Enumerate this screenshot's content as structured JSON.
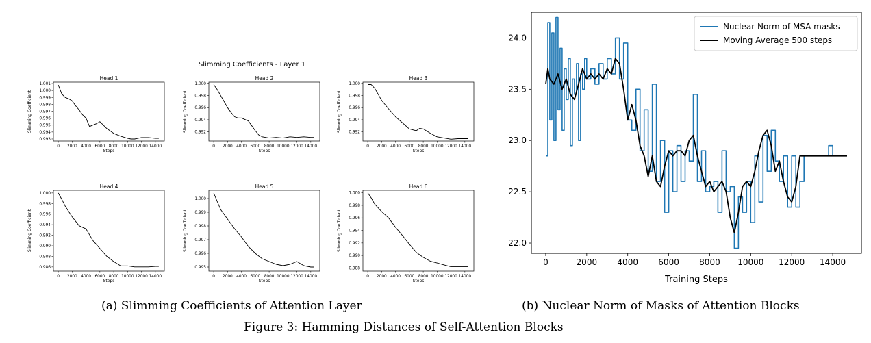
{
  "figure": {
    "caption": "Figure 3: Hamming Distances of Self-Attention Blocks",
    "sub_a": "(a) Slimming Coefficients of Attention Layer",
    "sub_b": "(b) Nuclear Norm of Masks of Attention Blocks"
  },
  "chart_data": [
    {
      "type": "line",
      "title": "Slimming Coefficients - Layer 1",
      "subplots": [
        {
          "title": "Head 1",
          "xlabel": "Steps",
          "ylabel": "Slimming Coefficient",
          "yticks": [
            0.993,
            0.994,
            0.995,
            0.996,
            0.997,
            0.998,
            0.999,
            1.0,
            1.001
          ],
          "ylim": [
            0.9927,
            1.0012
          ],
          "x": [
            0,
            500,
            1000,
            1500,
            2000,
            2500,
            3000,
            3500,
            4000,
            4500,
            5000,
            5500,
            6000,
            6500,
            7000,
            8000,
            9000,
            10000,
            10500,
            11000,
            12000,
            13000,
            14000,
            14500
          ],
          "y": [
            1.0008,
            0.9995,
            0.999,
            0.9988,
            0.9985,
            0.9978,
            0.9972,
            0.9965,
            0.996,
            0.9948,
            0.995,
            0.9952,
            0.9955,
            0.995,
            0.9945,
            0.9938,
            0.9934,
            0.9931,
            0.993,
            0.993,
            0.9932,
            0.9932,
            0.9931,
            0.9931
          ]
        },
        {
          "title": "Head 2",
          "xlabel": "Steps",
          "ylabel": "Slimming Coefficient",
          "yticks": [
            0.992,
            0.994,
            0.996,
            0.998,
            1.0
          ],
          "ylim": [
            0.9905,
            1.0002
          ],
          "x": [
            0,
            500,
            1000,
            1500,
            2000,
            2500,
            3000,
            3500,
            4000,
            5000,
            5500,
            6000,
            6500,
            7000,
            8000,
            9000,
            10000,
            11000,
            12000,
            13000,
            14000,
            14500
          ],
          "y": [
            0.9998,
            0.999,
            0.998,
            0.997,
            0.996,
            0.9952,
            0.9945,
            0.9943,
            0.9943,
            0.9938,
            0.993,
            0.9922,
            0.9915,
            0.9912,
            0.991,
            0.9911,
            0.991,
            0.9912,
            0.9911,
            0.9912,
            0.9911,
            0.9911
          ]
        },
        {
          "title": "Head 3",
          "xlabel": "Steps",
          "ylabel": "Slimming Coefficient",
          "yticks": [
            0.992,
            0.994,
            0.996,
            0.998,
            1.0
          ],
          "ylim": [
            0.9905,
            1.0002
          ],
          "x": [
            0,
            500,
            1000,
            1500,
            2000,
            3000,
            4000,
            5000,
            6000,
            7000,
            7500,
            8000,
            9000,
            10000,
            11000,
            12000,
            13000,
            14000,
            14500
          ],
          "y": [
            0.9998,
            0.9998,
            0.9992,
            0.9982,
            0.9972,
            0.9958,
            0.9945,
            0.9935,
            0.9925,
            0.9922,
            0.9926,
            0.9925,
            0.9918,
            0.9912,
            0.991,
            0.9908,
            0.9909,
            0.9909,
            0.9909
          ]
        },
        {
          "title": "Head 4",
          "xlabel": "Steps",
          "ylabel": "Slimming Coefficient",
          "yticks": [
            0.986,
            0.988,
            0.99,
            0.992,
            0.994,
            0.996,
            0.998,
            1.0
          ],
          "ylim": [
            0.9852,
            1.0005
          ],
          "x": [
            0,
            500,
            1000,
            2000,
            3000,
            4000,
            5000,
            6000,
            7000,
            8000,
            9000,
            10000,
            11000,
            12000,
            13000,
            14000,
            14500
          ],
          "y": [
            1.0,
            0.9988,
            0.9975,
            0.9955,
            0.9938,
            0.9932,
            0.991,
            0.9895,
            0.988,
            0.987,
            0.9862,
            0.9862,
            0.986,
            0.986,
            0.986,
            0.9861,
            0.9861
          ]
        },
        {
          "title": "Head 5",
          "xlabel": "Steps",
          "ylabel": "Slimming Coefficient",
          "yticks": [
            0.995,
            0.996,
            0.997,
            0.998,
            0.999,
            1.0
          ],
          "ylim": [
            0.9947,
            1.0006
          ],
          "x": [
            0,
            500,
            1000,
            2000,
            3000,
            4000,
            5000,
            6000,
            7000,
            8000,
            9000,
            10000,
            11000,
            12000,
            13000,
            14000,
            14500
          ],
          "y": [
            1.0004,
            0.9998,
            0.9992,
            0.9985,
            0.9978,
            0.9972,
            0.9965,
            0.996,
            0.9956,
            0.9954,
            0.9952,
            0.9951,
            0.9952,
            0.9954,
            0.9951,
            0.995,
            0.995
          ]
        },
        {
          "title": "Head 6",
          "xlabel": "Steps",
          "ylabel": "Slimming Coefficient",
          "yticks": [
            0.988,
            0.99,
            0.992,
            0.994,
            0.996,
            0.998,
            1.0
          ],
          "ylim": [
            0.9875,
            1.0004
          ],
          "x": [
            0,
            500,
            1000,
            2000,
            3000,
            4000,
            5000,
            6000,
            7000,
            8000,
            9000,
            10000,
            11000,
            12000,
            13000,
            14000,
            14500
          ],
          "y": [
            1.0,
            0.9992,
            0.9982,
            0.997,
            0.996,
            0.9945,
            0.9932,
            0.9918,
            0.9905,
            0.9897,
            0.9891,
            0.9888,
            0.9885,
            0.9882,
            0.9882,
            0.9882,
            0.9882
          ]
        }
      ],
      "xticks": [
        0,
        2000,
        4000,
        6000,
        8000,
        10000,
        12000,
        14000
      ],
      "xlim": [
        -700,
        15300
      ]
    },
    {
      "type": "line",
      "xlabel": "Training Steps",
      "ylabel": "",
      "xlim": [
        -700,
        15400
      ],
      "ylim": [
        21.9,
        24.25
      ],
      "xticks": [
        0,
        2000,
        4000,
        6000,
        8000,
        10000,
        12000,
        14000
      ],
      "yticks": [
        22.0,
        22.5,
        23.0,
        23.5,
        24.0
      ],
      "legend": "top-right",
      "series": [
        {
          "name": "Nuclear Norm of MSA masks",
          "color": "#1f77b4",
          "x": [
            0,
            100,
            200,
            300,
            400,
            500,
            600,
            700,
            800,
            900,
            1000,
            1100,
            1200,
            1300,
            1400,
            1500,
            1600,
            1700,
            1800,
            1900,
            2000,
            2200,
            2400,
            2600,
            2800,
            3000,
            3200,
            3400,
            3600,
            3800,
            4000,
            4200,
            4400,
            4600,
            4800,
            5000,
            5200,
            5400,
            5600,
            5800,
            6000,
            6200,
            6400,
            6600,
            6800,
            7000,
            7200,
            7400,
            7600,
            7800,
            8000,
            8200,
            8400,
            8600,
            8800,
            9000,
            9200,
            9400,
            9600,
            9800,
            10000,
            10200,
            10400,
            10600,
            10800,
            11000,
            11200,
            11400,
            11600,
            11800,
            12000,
            12200,
            12400,
            12600,
            12800,
            13000,
            13200,
            13400,
            13600,
            13800,
            14000,
            14200,
            14400,
            14700
          ],
          "y": [
            22.85,
            24.15,
            23.2,
            24.05,
            23.0,
            24.2,
            23.3,
            23.9,
            23.1,
            23.7,
            23.4,
            23.8,
            22.95,
            23.6,
            23.45,
            23.75,
            23.0,
            23.65,
            23.5,
            23.8,
            23.6,
            23.7,
            23.55,
            23.75,
            23.6,
            23.8,
            23.65,
            24.0,
            23.6,
            23.95,
            23.2,
            23.1,
            23.5,
            22.9,
            23.3,
            22.7,
            23.55,
            22.6,
            23.0,
            22.3,
            22.9,
            22.5,
            22.95,
            22.6,
            22.9,
            22.8,
            23.45,
            22.6,
            22.9,
            22.5,
            22.55,
            22.6,
            22.3,
            22.9,
            22.5,
            22.55,
            21.95,
            22.45,
            22.3,
            22.6,
            22.2,
            22.85,
            22.4,
            23.05,
            22.7,
            23.1,
            22.8,
            22.6,
            22.85,
            22.35,
            22.85,
            22.35,
            22.6,
            22.85,
            22.85,
            22.85,
            22.85,
            22.85,
            22.85,
            22.95,
            22.85,
            22.85,
            22.85,
            22.85
          ]
        },
        {
          "name": "Moving Average 500 steps",
          "color": "#000000",
          "x": [
            0,
            100,
            200,
            400,
            600,
            800,
            1000,
            1200,
            1400,
            1600,
            1800,
            2000,
            2200,
            2400,
            2600,
            2800,
            3000,
            3200,
            3400,
            3600,
            3800,
            4000,
            4200,
            4400,
            4600,
            4800,
            5000,
            5200,
            5400,
            5600,
            5800,
            6000,
            6200,
            6400,
            6600,
            6800,
            7000,
            7200,
            7400,
            7600,
            7800,
            8000,
            8200,
            8400,
            8600,
            8800,
            9000,
            9200,
            9400,
            9600,
            9800,
            10000,
            10200,
            10400,
            10600,
            10800,
            11000,
            11200,
            11400,
            11600,
            11800,
            12000,
            12200,
            12400,
            12600,
            12800,
            13000,
            13400,
            13800,
            14200,
            14700
          ],
          "y": [
            23.55,
            23.7,
            23.6,
            23.55,
            23.65,
            23.5,
            23.6,
            23.45,
            23.4,
            23.55,
            23.7,
            23.6,
            23.65,
            23.6,
            23.65,
            23.6,
            23.7,
            23.65,
            23.8,
            23.75,
            23.5,
            23.2,
            23.35,
            23.2,
            22.95,
            22.85,
            22.65,
            22.85,
            22.6,
            22.55,
            22.75,
            22.9,
            22.85,
            22.9,
            22.9,
            22.85,
            23.0,
            23.05,
            22.85,
            22.7,
            22.55,
            22.6,
            22.5,
            22.55,
            22.6,
            22.5,
            22.25,
            22.1,
            22.3,
            22.55,
            22.6,
            22.55,
            22.7,
            22.9,
            23.05,
            23.1,
            22.95,
            22.7,
            22.8,
            22.6,
            22.45,
            22.4,
            22.55,
            22.85,
            22.85,
            22.85,
            22.85,
            22.85,
            22.85,
            22.85,
            22.85
          ]
        }
      ]
    }
  ]
}
